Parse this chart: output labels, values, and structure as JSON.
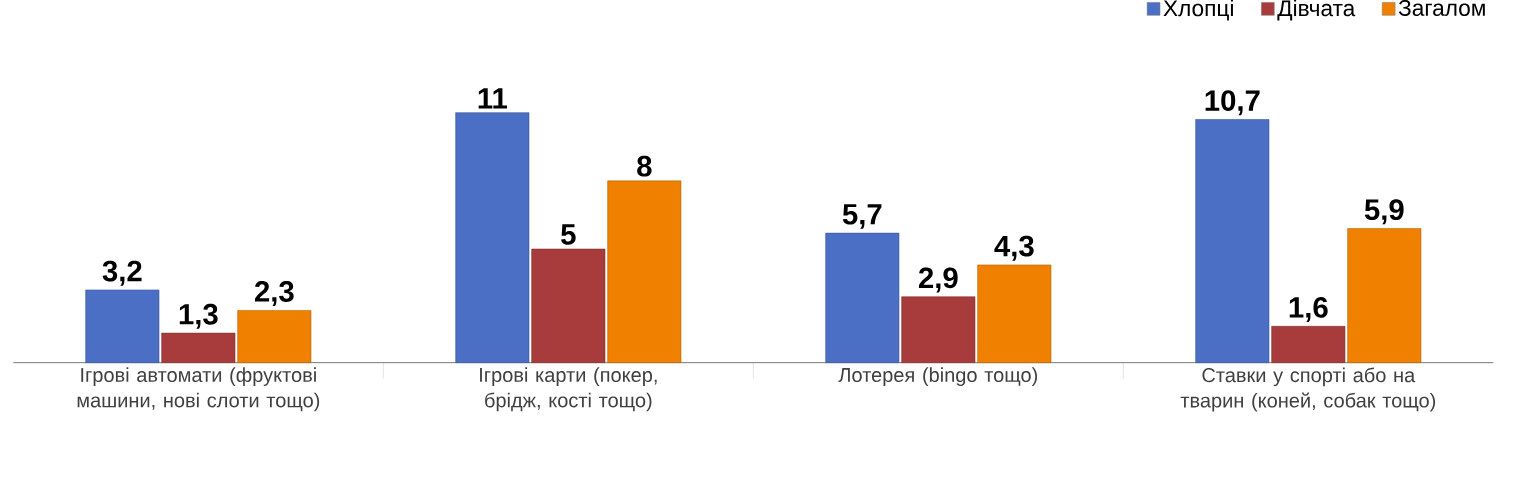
{
  "chart_data": {
    "type": "bar",
    "categories": [
      "Ігрові автомати (фруктові машини, нові слоти тощо)",
      "Ігрові карти (покер, брідж, кості тощо)",
      "Лотерея (bingo тощо)",
      "Ставки у спорті або на тварин (коней, собак тощо)"
    ],
    "series": [
      {
        "name": "Хлопці",
        "color": "#4a6fc4",
        "values": [
          3.2,
          11,
          5.7,
          10.7
        ],
        "value_labels": [
          "3,2",
          "11",
          "5,7",
          "10,7"
        ]
      },
      {
        "name": "Дівчата",
        "color": "#a83c3c",
        "values": [
          1.3,
          5,
          2.9,
          1.6
        ],
        "value_labels": [
          "1,3",
          "5",
          "2,9",
          "1,6"
        ]
      },
      {
        "name": "Загалом",
        "color": "#f08000",
        "values": [
          2.3,
          8,
          4.3,
          5.9
        ],
        "value_labels": [
          "2,3",
          "8",
          "4,3",
          "5,9"
        ]
      }
    ],
    "legend": "top right"
  }
}
